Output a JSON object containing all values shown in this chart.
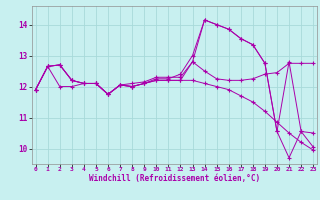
{
  "xlabel": "Windchill (Refroidissement éolien,°C)",
  "background_color": "#c8f0f0",
  "grid_color": "#a8dada",
  "line_color": "#aa00aa",
  "x_ticks": [
    0,
    1,
    2,
    3,
    4,
    5,
    6,
    7,
    8,
    9,
    10,
    11,
    12,
    13,
    14,
    15,
    16,
    17,
    18,
    19,
    20,
    21,
    22,
    23
  ],
  "y_ticks": [
    10,
    11,
    12,
    13,
    14
  ],
  "ylim": [
    9.5,
    14.6
  ],
  "xlim": [
    -0.3,
    23.3
  ],
  "series1_x": [
    0,
    1,
    2,
    3,
    4,
    5,
    6,
    7,
    8,
    9,
    10,
    11,
    12,
    13,
    14,
    15,
    16,
    17,
    18,
    19,
    20,
    21,
    22,
    23
  ],
  "series1_y": [
    11.9,
    12.65,
    12.7,
    12.2,
    12.1,
    12.1,
    11.75,
    12.05,
    12.0,
    12.1,
    12.2,
    12.2,
    12.2,
    12.8,
    12.5,
    12.25,
    12.2,
    12.2,
    12.25,
    12.4,
    12.45,
    12.75,
    12.75,
    12.75
  ],
  "series2_x": [
    0,
    1,
    2,
    3,
    4,
    5,
    6,
    7,
    8,
    9,
    10,
    11,
    12,
    13,
    14,
    15,
    16,
    17,
    18,
    19,
    20,
    21,
    22,
    23
  ],
  "series2_y": [
    11.9,
    12.65,
    12.0,
    12.0,
    12.1,
    12.1,
    11.75,
    12.05,
    12.0,
    12.1,
    12.25,
    12.25,
    12.4,
    13.0,
    14.15,
    14.0,
    13.85,
    13.55,
    13.35,
    12.75,
    10.55,
    12.8,
    10.55,
    10.5
  ],
  "series3_x": [
    0,
    1,
    2,
    3,
    4,
    5,
    6,
    7,
    8,
    9,
    10,
    11,
    12,
    13,
    14,
    15,
    16,
    17,
    18,
    19,
    20,
    21,
    22,
    23
  ],
  "series3_y": [
    11.9,
    12.65,
    12.7,
    12.2,
    12.1,
    12.1,
    11.75,
    12.05,
    12.0,
    12.1,
    12.2,
    12.2,
    12.2,
    12.2,
    12.1,
    12.0,
    11.9,
    11.7,
    11.5,
    11.2,
    10.85,
    10.5,
    10.2,
    9.95
  ],
  "series4_x": [
    0,
    1,
    2,
    3,
    4,
    5,
    6,
    7,
    8,
    9,
    10,
    11,
    12,
    13,
    14,
    15,
    16,
    17,
    18,
    19,
    20,
    21,
    22,
    23
  ],
  "series4_y": [
    11.9,
    12.65,
    12.7,
    12.2,
    12.1,
    12.1,
    11.75,
    12.05,
    12.1,
    12.15,
    12.3,
    12.3,
    12.3,
    12.8,
    14.15,
    14.0,
    13.85,
    13.55,
    13.35,
    12.75,
    10.55,
    9.7,
    10.55,
    10.05
  ]
}
